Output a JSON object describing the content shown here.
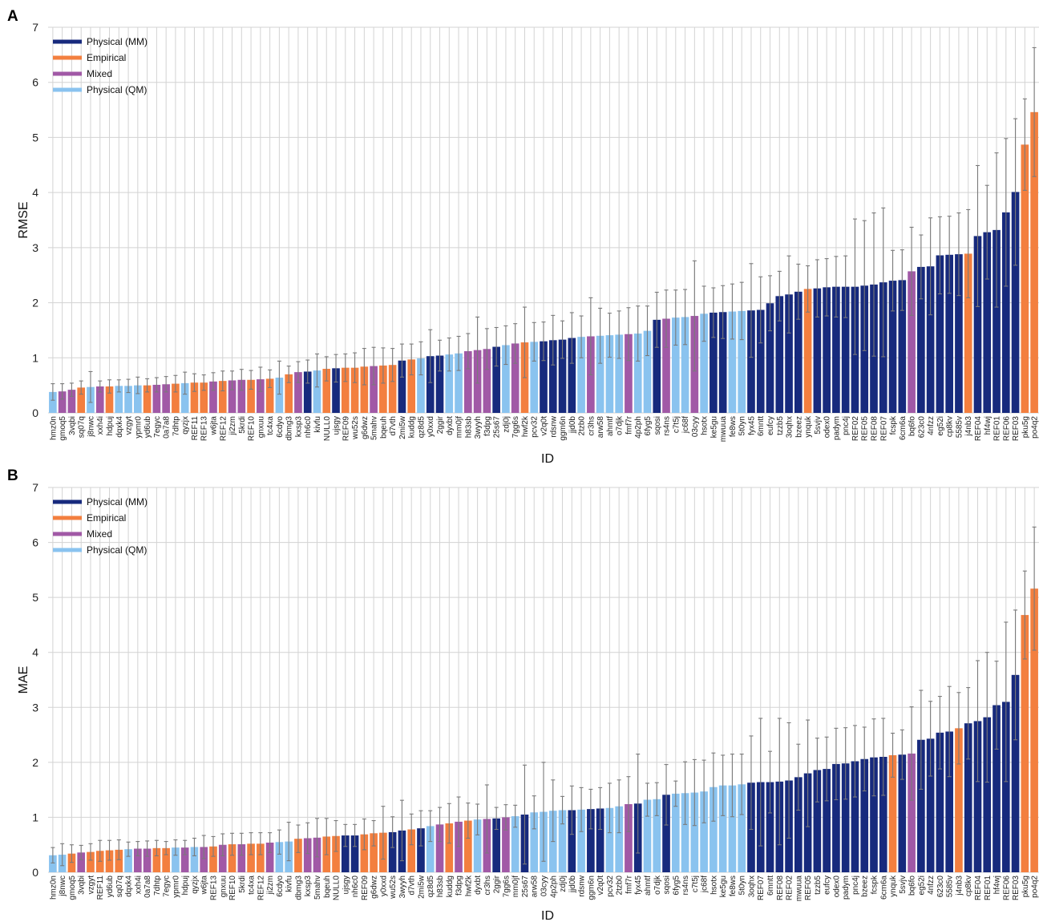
{
  "colors": {
    "Physical (MM)": "#172a7d",
    "Empirical": "#f37f3f",
    "Mixed": "#a159a6",
    "Physical (QM)": "#8ac3ef",
    "error_bar": "#7a7a7a",
    "grid": "#d3d3d3"
  },
  "legend_order": [
    "Physical (MM)",
    "Empirical",
    "Mixed",
    "Physical (QM)"
  ],
  "chart_data": [
    {
      "panel": "A",
      "type": "bar",
      "xlabel": "ID",
      "ylabel": "RMSE",
      "ylim": [
        0,
        7
      ],
      "yticks": [
        0,
        1,
        2,
        3,
        4,
        5,
        6,
        7
      ],
      "grid": true,
      "legend_position": "top-left",
      "categories": [
        "hmz0n",
        "gmoq5",
        "3vqbi",
        "sq07q",
        "j8nwc",
        "xxh4i",
        "hdpuj",
        "dqxk4",
        "vzgyt",
        "ypmr0",
        "yd6ub",
        "7egyc",
        "0a7a8",
        "7dhtp",
        "qyzjx",
        "REF11",
        "REF13",
        "w6jta",
        "REF12",
        "ji2zm",
        "5krdi",
        "REF10",
        "gnxuu",
        "tc4xa",
        "6cdyo",
        "dbmg3",
        "kxsp3",
        "nh6c0",
        "kivfu",
        "NULL0",
        "ujsgy",
        "REF09",
        "wu52s",
        "g6dwz",
        "5mahv",
        "bqeuh",
        "d7vth",
        "2mi5w",
        "kuddg",
        "qz8d5",
        "y0xxd",
        "2ggir",
        "dyxbt",
        "mm0jf",
        "h83sb",
        "3wyyh",
        "f3dpg",
        "25s67",
        "zdj0j",
        "7gg6s",
        "hwf2k",
        "pcv32",
        "v2q0t",
        "rdsnw",
        "ggm6n",
        "jjd0b",
        "2tzb0",
        "cr3hs",
        "arw58",
        "ahmtf",
        "o7djk",
        "fmf7r",
        "4p2ph",
        "6fyg5",
        "sqosi",
        "rs4ns",
        "c7t5j",
        "jc68f",
        "03cyy",
        "hsotx",
        "ke5gu",
        "mwuua",
        "fe8ws",
        "5t0yn",
        "fyx45",
        "6mntt",
        "eufcy",
        "tzzb5",
        "3oqhx",
        "bzeez",
        "ynquk",
        "5svjv",
        "odex0",
        "padym",
        "pnc4j",
        "REF02",
        "REF05",
        "REF08",
        "REF07",
        "fcspk",
        "6cm6a",
        "bq6fo",
        "623c0",
        "4nfzz",
        "eg52i",
        "cp8kv",
        "5585v",
        "j4nb3",
        "REF04",
        "hf4wj",
        "REF01",
        "REF06",
        "REF03",
        "pku5g",
        "po4q2"
      ],
      "groups": [
        "Physical (QM)",
        "Mixed",
        "Mixed",
        "Empirical",
        "Physical (QM)",
        "Mixed",
        "Empirical",
        "Physical (QM)",
        "Physical (QM)",
        "Physical (QM)",
        "Empirical",
        "Mixed",
        "Mixed",
        "Empirical",
        "Physical (QM)",
        "Empirical",
        "Empirical",
        "Mixed",
        "Empirical",
        "Mixed",
        "Mixed",
        "Empirical",
        "Mixed",
        "Empirical",
        "Physical (QM)",
        "Empirical",
        "Mixed",
        "Physical (MM)",
        "Physical (QM)",
        "Empirical",
        "Physical (MM)",
        "Empirical",
        "Empirical",
        "Empirical",
        "Mixed",
        "Empirical",
        "Empirical",
        "Physical (MM)",
        "Empirical",
        "Physical (QM)",
        "Physical (MM)",
        "Physical (MM)",
        "Physical (QM)",
        "Physical (QM)",
        "Mixed",
        "Mixed",
        "Mixed",
        "Physical (MM)",
        "Physical (QM)",
        "Mixed",
        "Empirical",
        "Physical (QM)",
        "Physical (MM)",
        "Physical (MM)",
        "Physical (MM)",
        "Physical (MM)",
        "Physical (QM)",
        "Mixed",
        "Physical (QM)",
        "Physical (QM)",
        "Physical (QM)",
        "Mixed",
        "Physical (QM)",
        "Physical (QM)",
        "Physical (MM)",
        "Mixed",
        "Physical (QM)",
        "Physical (QM)",
        "Mixed",
        "Physical (QM)",
        "Physical (MM)",
        "Physical (MM)",
        "Physical (QM)",
        "Physical (QM)",
        "Physical (MM)",
        "Physical (MM)",
        "Physical (MM)",
        "Physical (MM)",
        "Physical (MM)",
        "Physical (MM)",
        "Empirical",
        "Physical (MM)",
        "Physical (MM)",
        "Physical (MM)",
        "Physical (MM)",
        "Physical (MM)",
        "Physical (MM)",
        "Physical (MM)",
        "Physical (MM)",
        "Physical (MM)",
        "Physical (MM)",
        "Mixed",
        "Physical (MM)",
        "Physical (MM)",
        "Physical (MM)",
        "Physical (MM)",
        "Physical (MM)",
        "Empirical",
        "Physical (MM)",
        "Physical (MM)",
        "Physical (MM)",
        "Physical (MM)",
        "Physical (MM)",
        "Empirical",
        "Empirical"
      ],
      "values": [
        0.38,
        0.39,
        0.42,
        0.46,
        0.47,
        0.48,
        0.48,
        0.49,
        0.49,
        0.5,
        0.5,
        0.51,
        0.52,
        0.53,
        0.54,
        0.55,
        0.55,
        0.57,
        0.58,
        0.59,
        0.6,
        0.6,
        0.61,
        0.62,
        0.64,
        0.7,
        0.74,
        0.75,
        0.77,
        0.8,
        0.81,
        0.82,
        0.82,
        0.84,
        0.85,
        0.86,
        0.87,
        0.95,
        0.97,
        0.99,
        1.03,
        1.04,
        1.06,
        1.08,
        1.12,
        1.14,
        1.16,
        1.2,
        1.23,
        1.26,
        1.28,
        1.29,
        1.3,
        1.32,
        1.33,
        1.36,
        1.38,
        1.39,
        1.4,
        1.41,
        1.42,
        1.43,
        1.44,
        1.49,
        1.69,
        1.71,
        1.73,
        1.74,
        1.76,
        1.8,
        1.82,
        1.83,
        1.84,
        1.85,
        1.86,
        1.87,
        1.99,
        2.12,
        2.15,
        2.2,
        2.25,
        2.26,
        2.28,
        2.29,
        2.29,
        2.29,
        2.31,
        2.33,
        2.37,
        2.4,
        2.41,
        2.57,
        2.65,
        2.66,
        2.86,
        2.87,
        2.88,
        2.89,
        3.21,
        3.28,
        3.32,
        3.64,
        4.01,
        4.87,
        5.46
      ],
      "errors": [
        0.15,
        0.14,
        0.12,
        0.12,
        0.28,
        0.1,
        0.12,
        0.11,
        0.12,
        0.15,
        0.12,
        0.13,
        0.14,
        0.15,
        0.2,
        0.16,
        0.14,
        0.16,
        0.18,
        0.17,
        0.19,
        0.17,
        0.22,
        0.16,
        0.3,
        0.15,
        0.19,
        0.21,
        0.3,
        0.22,
        0.25,
        0.25,
        0.27,
        0.33,
        0.34,
        0.32,
        0.3,
        0.3,
        0.28,
        0.3,
        0.48,
        0.28,
        0.3,
        0.31,
        0.32,
        0.6,
        0.37,
        0.35,
        0.35,
        0.36,
        0.64,
        0.35,
        0.35,
        0.45,
        0.34,
        0.46,
        0.38,
        0.7,
        0.5,
        0.4,
        0.43,
        0.48,
        0.5,
        0.45,
        0.5,
        0.52,
        0.5,
        0.5,
        1.0,
        0.5,
        0.45,
        0.48,
        0.5,
        0.52,
        0.85,
        0.6,
        0.5,
        0.45,
        0.7,
        0.5,
        0.42,
        0.52,
        0.52,
        0.55,
        0.56,
        1.23,
        1.18,
        1.3,
        1.35,
        0.55,
        0.55,
        0.8,
        0.58,
        0.88,
        0.7,
        0.7,
        0.75,
        0.8,
        1.28,
        0.85,
        1.4,
        1.34,
        1.33,
        0.83,
        1.17
      ]
    },
    {
      "panel": "B",
      "type": "bar",
      "xlabel": "ID",
      "ylabel": "MAE",
      "ylim": [
        0,
        7
      ],
      "yticks": [
        0,
        1,
        2,
        3,
        4,
        5,
        6,
        7
      ],
      "grid": true,
      "legend_position": "top-left",
      "categories": [
        "hmz0n",
        "j8nwc",
        "gmoq5",
        "3vqbi",
        "vzgyt",
        "REF11",
        "yd6ub",
        "sq07q",
        "dqxk4",
        "xxh4i",
        "0a7a8",
        "7dhtp",
        "7egyc",
        "ypmr0",
        "hdpuj",
        "qyzjx",
        "w6jta",
        "REF13",
        "gnxuu",
        "REF10",
        "5krdi",
        "tc4xa",
        "REF12",
        "ji2zm",
        "6cdyo",
        "kivfu",
        "dbmg3",
        "kxsp3",
        "5mahv",
        "bqeuh",
        "NULL0",
        "ujsgy",
        "nh6c0",
        "REF09",
        "g6dwz",
        "y0xxd",
        "wu52s",
        "3wyyh",
        "d7vth",
        "2mi5w",
        "qz8d5",
        "h83sb",
        "kuddg",
        "f3dpg",
        "hwf2k",
        "dyxbt",
        "cr3hs",
        "2ggir",
        "7gg6s",
        "mm0jf",
        "25s67",
        "arw58",
        "03cyy",
        "4p2ph",
        "zdj0j",
        "jjd0b",
        "rdsnw",
        "ggm6n",
        "v2q0t",
        "pcv32",
        "2tzb0",
        "fmf7r",
        "fyx45",
        "ahmtf",
        "o7djk",
        "sqosi",
        "6fyg5",
        "rs4ns",
        "c7t5j",
        "jc68f",
        "hsotx",
        "ke5gu",
        "fe8ws",
        "5t0yn",
        "3oqhx",
        "REF07",
        "6mntt",
        "REF08",
        "REF02",
        "mwuua",
        "REF05",
        "tzzb5",
        "eufcy",
        "odex0",
        "padym",
        "pnc4j",
        "bzeez",
        "fcspk",
        "6cm6a",
        "ynquk",
        "5svjv",
        "bq6fo",
        "eg52i",
        "4nfzz",
        "623c0",
        "5585v",
        "j4nb3",
        "cp8kv",
        "REF04",
        "REF01",
        "hf4wj",
        "REF06",
        "REF03",
        "pku5g",
        "po4q2"
      ],
      "groups": [
        "Physical (QM)",
        "Physical (QM)",
        "Empirical",
        "Mixed",
        "Empirical",
        "Empirical",
        "Empirical",
        "Empirical",
        "Physical (QM)",
        "Mixed",
        "Mixed",
        "Empirical",
        "Empirical",
        "Physical (QM)",
        "Mixed",
        "Physical (QM)",
        "Mixed",
        "Empirical",
        "Mixed",
        "Empirical",
        "Mixed",
        "Empirical",
        "Empirical",
        "Mixed",
        "Physical (QM)",
        "Physical (QM)",
        "Empirical",
        "Mixed",
        "Mixed",
        "Empirical",
        "Empirical",
        "Physical (MM)",
        "Physical (MM)",
        "Empirical",
        "Empirical",
        "Empirical",
        "Physical (MM)",
        "Physical (MM)",
        "Empirical",
        "Physical (MM)",
        "Physical (QM)",
        "Mixed",
        "Empirical",
        "Mixed",
        "Empirical",
        "Physical (QM)",
        "Mixed",
        "Physical (MM)",
        "Mixed",
        "Physical (QM)",
        "Physical (MM)",
        "Physical (QM)",
        "Physical (QM)",
        "Physical (QM)",
        "Physical (QM)",
        "Physical (MM)",
        "Physical (QM)",
        "Physical (MM)",
        "Physical (MM)",
        "Physical (QM)",
        "Physical (QM)",
        "Mixed",
        "Physical (MM)",
        "Physical (QM)",
        "Physical (QM)",
        "Physical (MM)",
        "Physical (QM)",
        "Physical (QM)",
        "Physical (QM)",
        "Physical (QM)",
        "Physical (QM)",
        "Physical (QM)",
        "Physical (QM)",
        "Physical (QM)",
        "Physical (MM)",
        "Physical (MM)",
        "Physical (MM)",
        "Physical (MM)",
        "Physical (MM)",
        "Physical (MM)",
        "Physical (MM)",
        "Physical (MM)",
        "Physical (MM)",
        "Physical (MM)",
        "Physical (MM)",
        "Physical (MM)",
        "Physical (MM)",
        "Physical (MM)",
        "Physical (MM)",
        "Empirical",
        "Physical (MM)",
        "Mixed",
        "Physical (MM)",
        "Physical (MM)",
        "Physical (MM)",
        "Physical (MM)",
        "Empirical",
        "Physical (MM)",
        "Physical (MM)",
        "Physical (MM)",
        "Physical (MM)",
        "Physical (MM)",
        "Physical (MM)",
        "Empirical",
        "Empirical"
      ],
      "values": [
        0.31,
        0.32,
        0.34,
        0.36,
        0.37,
        0.39,
        0.4,
        0.41,
        0.42,
        0.43,
        0.43,
        0.44,
        0.44,
        0.45,
        0.45,
        0.46,
        0.46,
        0.47,
        0.5,
        0.51,
        0.51,
        0.52,
        0.52,
        0.54,
        0.55,
        0.56,
        0.61,
        0.62,
        0.63,
        0.65,
        0.66,
        0.67,
        0.67,
        0.69,
        0.71,
        0.72,
        0.73,
        0.76,
        0.78,
        0.8,
        0.84,
        0.87,
        0.89,
        0.92,
        0.94,
        0.96,
        0.97,
        0.98,
        1.0,
        1.02,
        1.05,
        1.09,
        1.1,
        1.12,
        1.13,
        1.13,
        1.14,
        1.15,
        1.16,
        1.17,
        1.2,
        1.24,
        1.25,
        1.32,
        1.33,
        1.41,
        1.43,
        1.44,
        1.45,
        1.47,
        1.55,
        1.58,
        1.58,
        1.6,
        1.63,
        1.64,
        1.64,
        1.65,
        1.67,
        1.73,
        1.8,
        1.86,
        1.88,
        1.97,
        1.98,
        2.02,
        2.06,
        2.09,
        2.1,
        2.13,
        2.14,
        2.16,
        2.41,
        2.43,
        2.54,
        2.56,
        2.62,
        2.71,
        2.75,
        2.82,
        3.04,
        3.1,
        3.59,
        4.68,
        5.16
      ],
      "errors": [
        0.14,
        0.2,
        0.16,
        0.13,
        0.15,
        0.19,
        0.18,
        0.18,
        0.13,
        0.13,
        0.14,
        0.14,
        0.12,
        0.14,
        0.13,
        0.16,
        0.21,
        0.18,
        0.2,
        0.2,
        0.2,
        0.2,
        0.2,
        0.18,
        0.22,
        0.35,
        0.25,
        0.28,
        0.35,
        0.33,
        0.28,
        0.2,
        0.2,
        0.28,
        0.23,
        0.48,
        0.28,
        0.55,
        0.28,
        0.32,
        0.28,
        0.31,
        0.36,
        0.45,
        0.32,
        0.28,
        0.62,
        0.2,
        0.23,
        0.2,
        0.9,
        0.3,
        0.9,
        0.56,
        0.25,
        0.44,
        0.4,
        0.36,
        0.38,
        0.45,
        0.48,
        0.5,
        0.9,
        0.3,
        0.3,
        0.55,
        0.23,
        0.57,
        0.6,
        0.57,
        0.62,
        0.55,
        0.57,
        0.55,
        0.85,
        1.16,
        0.56,
        1.15,
        1.05,
        0.6,
        0.97,
        0.58,
        0.58,
        0.65,
        0.65,
        0.65,
        0.58,
        0.7,
        0.7,
        0.4,
        0.45,
        0.85,
        0.9,
        0.68,
        0.66,
        0.82,
        0.65,
        0.65,
        1.1,
        1.18,
        0.8,
        1.45,
        1.18,
        0.8,
        1.12
      ]
    }
  ]
}
